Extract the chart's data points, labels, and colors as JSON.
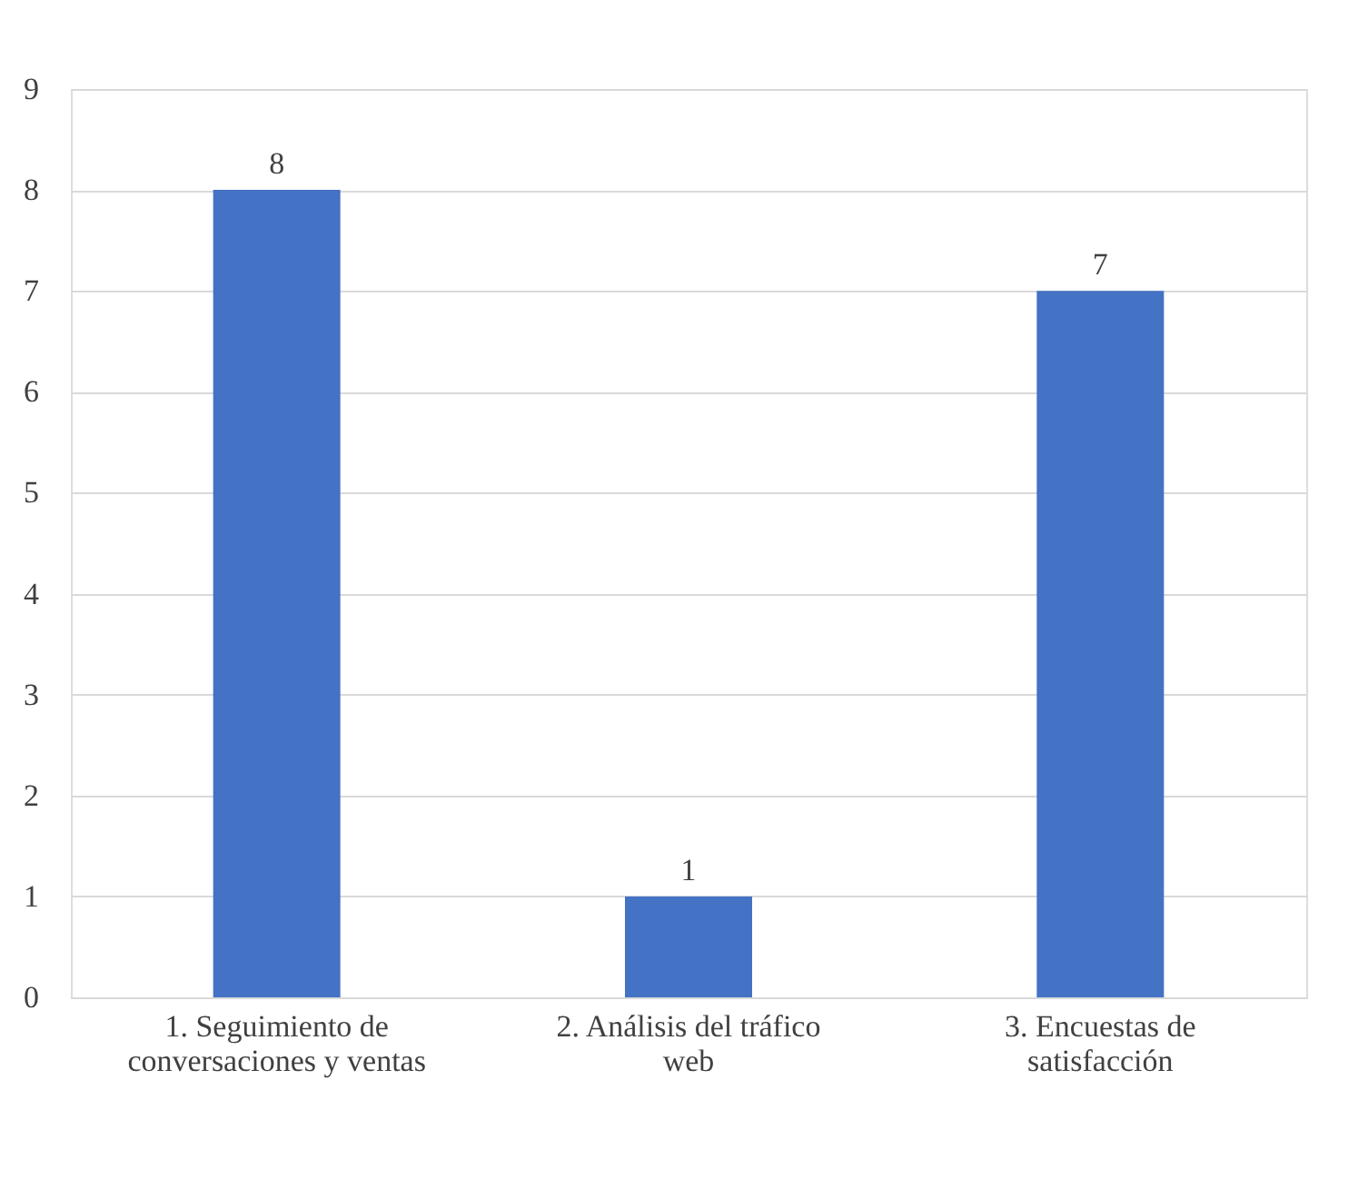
{
  "chart_data": {
    "type": "bar",
    "categories": [
      "1. Seguimiento de conversaciones y ventas",
      "2. Análisis del tráfico web",
      "3. Encuestas de satisfacción"
    ],
    "values": [
      8,
      1,
      7
    ],
    "color": "#4472c4",
    "ylim": [
      0,
      9
    ],
    "yticks": [
      0,
      1,
      2,
      3,
      4,
      5,
      6,
      7,
      8,
      9
    ],
    "grid": "y",
    "data_labels": true
  }
}
